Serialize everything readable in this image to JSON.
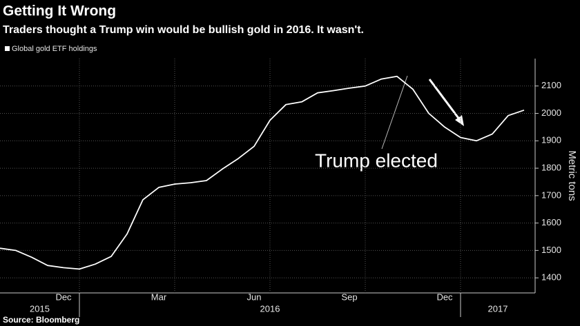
{
  "chart_data": {
    "type": "line",
    "title": "Getting It Wrong",
    "subtitle": "Traders thought a Trump win would be bullish gold in 2016. It wasn't.",
    "source": "Source: Bloomberg",
    "y_label": "Metric tons",
    "annotation": "Trump elected",
    "categories": [
      null,
      null,
      null,
      null,
      "Dec",
      null,
      null,
      null,
      null,
      null,
      "Mar",
      null,
      null,
      null,
      null,
      null,
      "Jun",
      null,
      null,
      null,
      null,
      null,
      "Sep",
      null,
      null,
      null,
      null,
      null,
      "Dec",
      null,
      null,
      null,
      null,
      null
    ],
    "x_years": [
      "2015",
      "2015",
      "2015",
      "2015",
      "2015",
      "2016",
      "2016",
      "2016",
      "2016",
      "2016",
      "2016",
      "2016",
      "2016",
      "2016",
      "2016",
      "2016",
      "2016",
      "2016",
      "2016",
      "2016",
      "2016",
      "2016",
      "2016",
      "2016",
      "2016",
      "2016",
      "2016",
      "2016",
      "2016",
      "2017",
      "2017",
      "2017",
      "2017",
      "2017"
    ],
    "series": [
      {
        "name": "Global gold ETF holdings",
        "color": "#ffffff",
        "values": [
          1508,
          1500,
          1475,
          1445,
          1437,
          1432,
          1450,
          1478,
          1560,
          1685,
          1730,
          1742,
          1747,
          1755,
          1797,
          1835,
          1880,
          1975,
          2032,
          2042,
          2075,
          2083,
          2092,
          2100,
          2125,
          2135,
          2088,
          2000,
          1950,
          1912,
          1900,
          1925,
          1992,
          2012
        ]
      }
    ],
    "ylim": [
      1345,
      2200
    ],
    "yticks": [
      1400,
      1500,
      1600,
      1700,
      1800,
      1900,
      2000,
      2100
    ],
    "grid": true
  }
}
